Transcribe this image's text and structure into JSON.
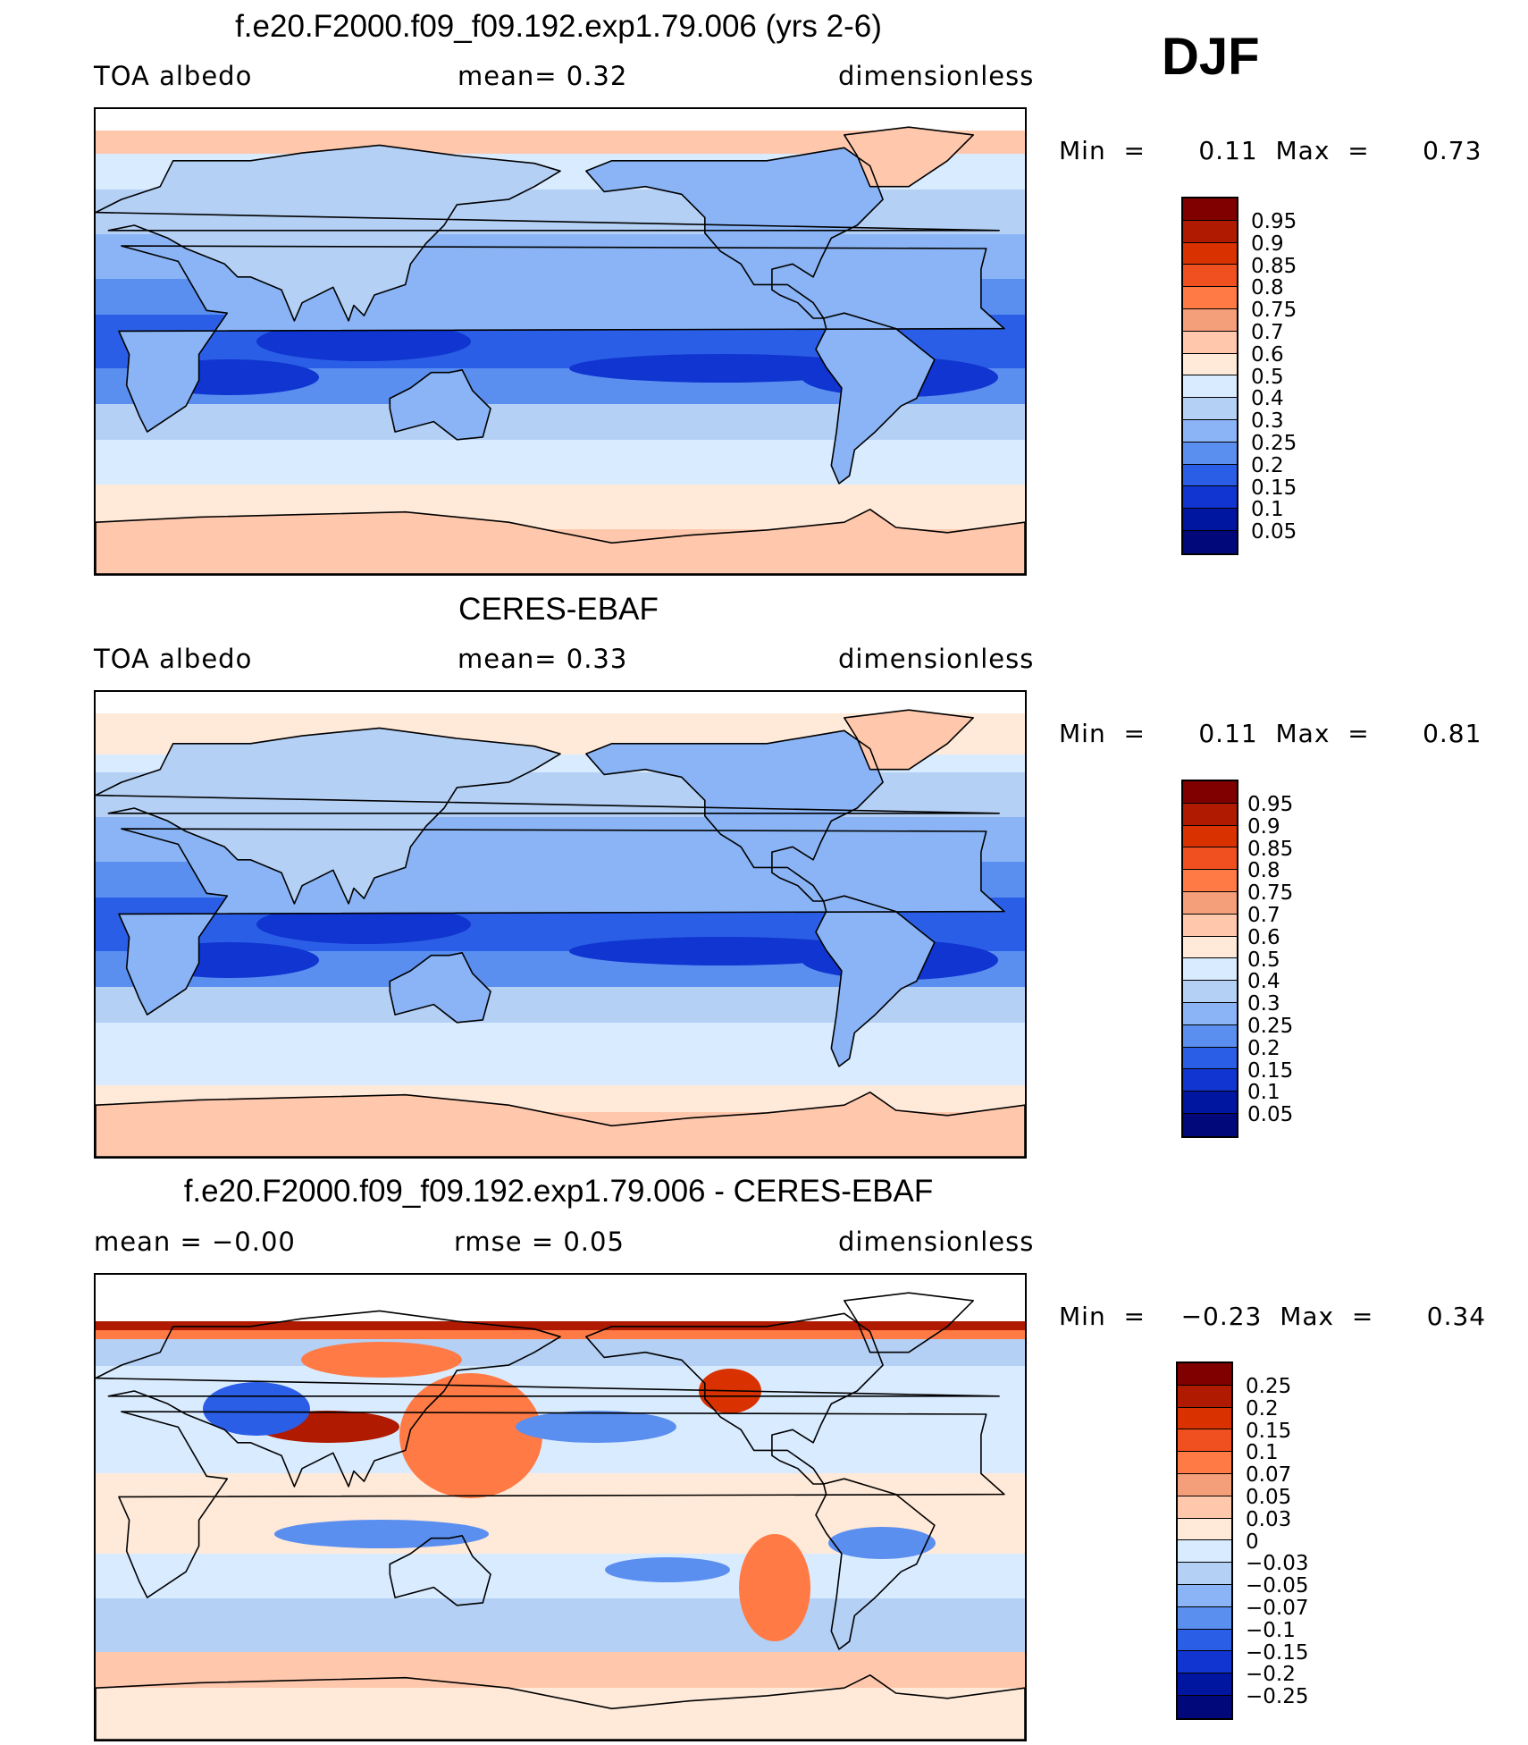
{
  "season": "DJF",
  "panels": [
    {
      "title": "f.e20.F2000.f09_f09.192.exp1.79.006 (yrs 2-6)",
      "left_label": "TOA  albedo",
      "center_label": "mean=    0.32",
      "right_label": "dimensionless",
      "min_label": "Min  =",
      "min_value": "0.11",
      "max_label": "Max  =",
      "max_value": "0.73",
      "levels": [
        "0.95",
        "0.9",
        "0.85",
        "0.8",
        "0.75",
        "0.7",
        "0.6",
        "0.5",
        "0.4",
        "0.3",
        "0.25",
        "0.2",
        "0.15",
        "0.1",
        "0.05"
      ]
    },
    {
      "title": "CERES-EBAF",
      "left_label": "TOA  albedo",
      "center_label": "mean=    0.33",
      "right_label": "dimensionless",
      "min_label": "Min  =",
      "min_value": "0.11",
      "max_label": "Max  =",
      "max_value": "0.81",
      "levels": [
        "0.95",
        "0.9",
        "0.85",
        "0.8",
        "0.75",
        "0.7",
        "0.6",
        "0.5",
        "0.4",
        "0.3",
        "0.25",
        "0.2",
        "0.15",
        "0.1",
        "0.05"
      ]
    },
    {
      "title": "f.e20.F2000.f09_f09.192.exp1.79.006 - CERES-EBAF",
      "left_label": "mean  =   −0.00",
      "center_label": "rmse  =    0.05",
      "right_label": "dimensionless",
      "min_label": "Min  =",
      "min_value": "−0.23",
      "max_label": "Max  =",
      "max_value": "0.34",
      "levels": [
        "0.25",
        "0.2",
        "0.15",
        "0.1",
        "0.07",
        "0.05",
        "0.03",
        "0",
        "−0.03",
        "−0.05",
        "−0.07",
        "−0.1",
        "−0.15",
        "−0.2",
        "−0.25"
      ]
    }
  ],
  "colors": {
    "palette": [
      "#800000",
      "#b01a00",
      "#d93200",
      "#f05020",
      "#ff7a45",
      "#f59e7a",
      "#ffc8ad",
      "#ffe9d8",
      "#d9ebff",
      "#b4d0f5",
      "#8ab4f5",
      "#5a8ff0",
      "#2b5ee6",
      "#1035d0",
      "#0015a0",
      "#00087a"
    ]
  },
  "chart_data": [
    {
      "type": "heatmap",
      "title": "f.e20.F2000.f09_f09.192.exp1.79.006 (yrs 2-6)",
      "variable": "TOA albedo",
      "units": "dimensionless",
      "season": "DJF",
      "mean": 0.32,
      "min": 0.11,
      "max": 0.73,
      "contour_levels": [
        0.05,
        0.1,
        0.15,
        0.2,
        0.25,
        0.3,
        0.4,
        0.5,
        0.6,
        0.7,
        0.75,
        0.8,
        0.85,
        0.9,
        0.95
      ]
    },
    {
      "type": "heatmap",
      "title": "CERES-EBAF",
      "variable": "TOA albedo",
      "units": "dimensionless",
      "season": "DJF",
      "mean": 0.33,
      "min": 0.11,
      "max": 0.81,
      "contour_levels": [
        0.05,
        0.1,
        0.15,
        0.2,
        0.25,
        0.3,
        0.4,
        0.5,
        0.6,
        0.7,
        0.75,
        0.8,
        0.85,
        0.9,
        0.95
      ]
    },
    {
      "type": "heatmap",
      "title": "f.e20.F2000.f09_f09.192.exp1.79.006 - CERES-EBAF",
      "variable": "TOA albedo difference",
      "units": "dimensionless",
      "season": "DJF",
      "mean": -0.0,
      "rmse": 0.05,
      "min": -0.23,
      "max": 0.34,
      "contour_levels": [
        -0.25,
        -0.2,
        -0.15,
        -0.1,
        -0.07,
        -0.05,
        -0.03,
        0,
        0.03,
        0.05,
        0.07,
        0.1,
        0.15,
        0.2,
        0.25
      ]
    }
  ]
}
